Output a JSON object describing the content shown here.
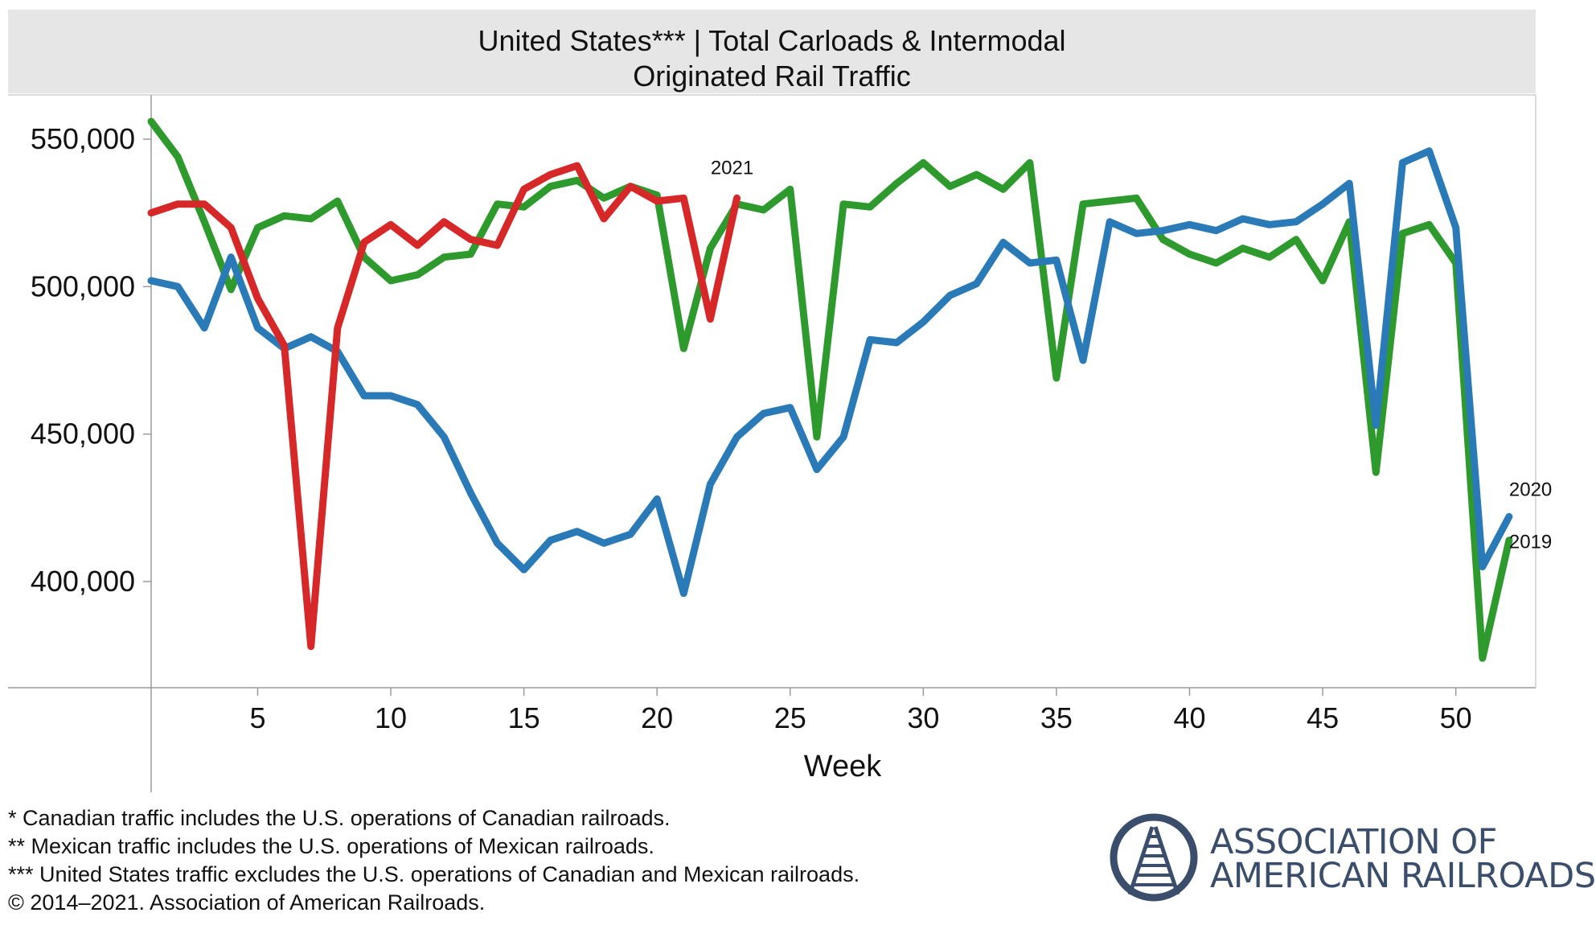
{
  "title": {
    "line1": "United States*** | Total Carloads & Intermodal",
    "line2": "Originated Rail Traffic"
  },
  "chart_data": {
    "type": "line",
    "xlabel": "Week",
    "ylabel": "",
    "xlim": [
      1,
      53
    ],
    "ylim": [
      364000,
      565000
    ],
    "xticks": [
      5,
      10,
      15,
      20,
      25,
      30,
      35,
      40,
      45,
      50
    ],
    "yticks": [
      400000,
      450000,
      500000,
      550000
    ],
    "ytick_labels": [
      "400,000",
      "450,000",
      "500,000",
      "550,000"
    ],
    "grid": false,
    "series": [
      {
        "name": "2019",
        "color": "#2e9a2e",
        "weeks": [
          1,
          2,
          3,
          4,
          5,
          6,
          7,
          8,
          9,
          10,
          11,
          12,
          13,
          14,
          15,
          16,
          17,
          18,
          19,
          20,
          21,
          22,
          23,
          24,
          25,
          26,
          27,
          28,
          29,
          30,
          31,
          32,
          33,
          34,
          35,
          36,
          37,
          38,
          39,
          40,
          41,
          42,
          43,
          44,
          45,
          46,
          47,
          48,
          49,
          50,
          51,
          52
        ],
        "values": [
          556000,
          544000,
          522000,
          499000,
          520000,
          524000,
          523000,
          529000,
          510000,
          502000,
          504000,
          510000,
          511000,
          528000,
          527000,
          534000,
          536000,
          530000,
          534000,
          531000,
          479000,
          513000,
          528000,
          526000,
          533000,
          449000,
          528000,
          527000,
          535000,
          542000,
          534000,
          538000,
          533000,
          542000,
          469000,
          528000,
          529000,
          530000,
          516000,
          511000,
          508000,
          513000,
          510000,
          516000,
          502000,
          522000,
          437000,
          518000,
          521000,
          508000,
          374000,
          414000
        ]
      },
      {
        "name": "2020",
        "color": "#2a7ab8",
        "weeks": [
          1,
          2,
          3,
          4,
          5,
          6,
          7,
          8,
          9,
          10,
          11,
          12,
          13,
          14,
          15,
          16,
          17,
          18,
          19,
          20,
          21,
          22,
          23,
          24,
          25,
          26,
          27,
          28,
          29,
          30,
          31,
          32,
          33,
          34,
          35,
          36,
          37,
          38,
          39,
          40,
          41,
          42,
          43,
          44,
          45,
          46,
          47,
          48,
          49,
          50,
          51,
          52
        ],
        "values": [
          502000,
          500000,
          486000,
          510000,
          486000,
          479000,
          483000,
          478000,
          463000,
          463000,
          460000,
          449000,
          430000,
          413000,
          404000,
          414000,
          417000,
          413000,
          416000,
          428000,
          396000,
          433000,
          449000,
          457000,
          459000,
          438000,
          449000,
          482000,
          481000,
          488000,
          497000,
          501000,
          515000,
          508000,
          509000,
          475000,
          522000,
          518000,
          519000,
          521000,
          519000,
          523000,
          521000,
          522000,
          528000,
          535000,
          453000,
          542000,
          546000,
          520000,
          405000,
          422000
        ]
      },
      {
        "name": "2021",
        "color": "#d62828",
        "weeks": [
          1,
          2,
          3,
          4,
          5,
          6,
          7,
          8,
          9,
          10,
          11,
          12,
          13,
          14,
          15,
          16,
          17,
          18,
          19,
          20,
          21,
          22,
          23
        ],
        "values": [
          525000,
          528000,
          528000,
          520000,
          496000,
          480000,
          378000,
          486000,
          515000,
          521000,
          514000,
          522000,
          516000,
          514000,
          533000,
          538000,
          541000,
          523000,
          534000,
          529000,
          530000,
          489000,
          530000
        ]
      }
    ],
    "annotations": [
      "2021",
      "2020",
      "2019"
    ]
  },
  "footnotes": [
    "* Canadian traffic includes the U.S. operations of Canadian railroads.",
    "** Mexican traffic includes the U.S. operations of Mexican railroads.",
    "*** United States traffic excludes the U.S. operations of Canadian and Mexican railroads.",
    "© 2014–2021. Association of American Railroads."
  ],
  "logo": {
    "line1": "ASSOCIATION OF",
    "line2": "AMERICAN RAILROADS",
    "color": "#3a4d6b"
  }
}
